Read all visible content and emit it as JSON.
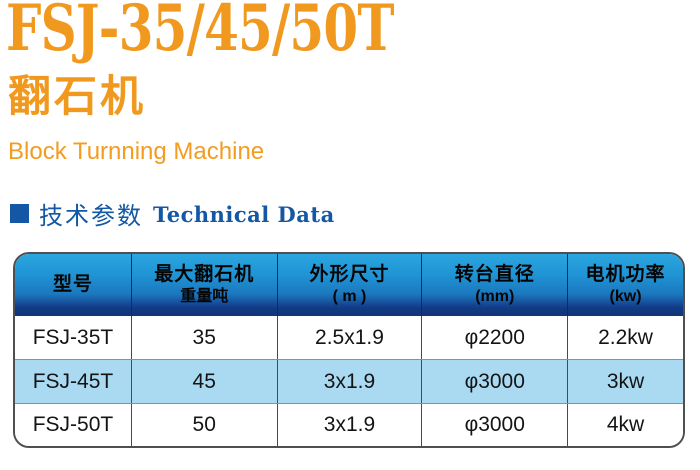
{
  "page": {
    "title": "FSJ-35/45/50T",
    "subtitle_zh": "翻石机",
    "subtitle_en": "Block Turnning Machine"
  },
  "section": {
    "heading_zh": "技术参数",
    "heading_en": "Technical Data"
  },
  "table": {
    "columns": [
      {
        "line1": "型号",
        "line2": ""
      },
      {
        "line1": "最大翻石机",
        "line2": "重量吨"
      },
      {
        "line1": "外形尺寸",
        "line2": "( m )"
      },
      {
        "line1": "转台直径",
        "line2": "(mm)"
      },
      {
        "line1": "电机功率",
        "line2": "(kw)"
      }
    ],
    "rows": [
      {
        "model": "FSJ-35T",
        "max_weight_t": "35",
        "dimensions_m": "2.5x1.9",
        "turntable_diameter_mm": "φ2200",
        "motor_power_kw": "2.2kw"
      },
      {
        "model": "FSJ-45T",
        "max_weight_t": "45",
        "dimensions_m": "3x1.9",
        "turntable_diameter_mm": "φ3000",
        "motor_power_kw": "3kw"
      },
      {
        "model": "FSJ-50T",
        "max_weight_t": "50",
        "dimensions_m": "3x1.9",
        "turntable_diameter_mm": "φ3000",
        "motor_power_kw": "4kw"
      }
    ]
  },
  "colors": {
    "accent_orange": "#F0991E",
    "heading_blue": "#1357A5",
    "header_gradient_top": "#2BA6E0",
    "header_gradient_bottom": "#113577",
    "row_alt_blue": "#A9DAF2",
    "table_border": "#4F4F4F"
  }
}
